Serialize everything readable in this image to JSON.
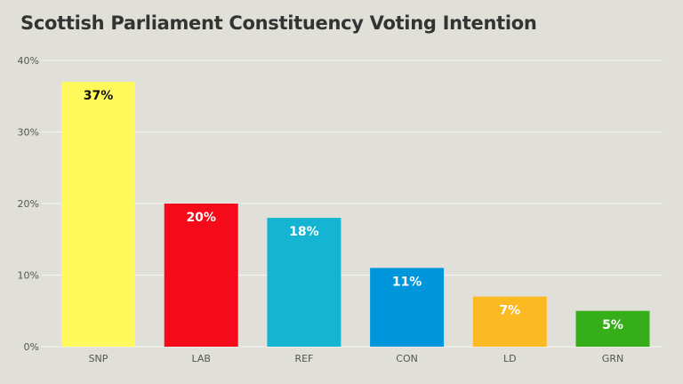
{
  "chart_data": {
    "type": "bar",
    "title": "Scottish Parliament Constituency Voting Intention",
    "xlabel": "",
    "ylabel": "",
    "ylim": [
      0,
      40
    ],
    "yticks": [
      "0%",
      "10%",
      "20%",
      "30%",
      "40%"
    ],
    "grid": true,
    "categories": [
      "SNP",
      "LAB",
      "REF",
      "CON",
      "LD",
      "GRN"
    ],
    "values": [
      37,
      20,
      18,
      11,
      7,
      5
    ],
    "data_labels": [
      "37%",
      "20%",
      "18%",
      "11%",
      "7%",
      "5%"
    ],
    "colors": [
      "#fff95c",
      "#f50a19",
      "#14b4d2",
      "#0096dc",
      "#fbb922",
      "#35ae1a"
    ],
    "label_colors": [
      "#111111",
      "#ffffff",
      "#ffffff",
      "#ffffff",
      "#ffffff",
      "#ffffff"
    ]
  }
}
